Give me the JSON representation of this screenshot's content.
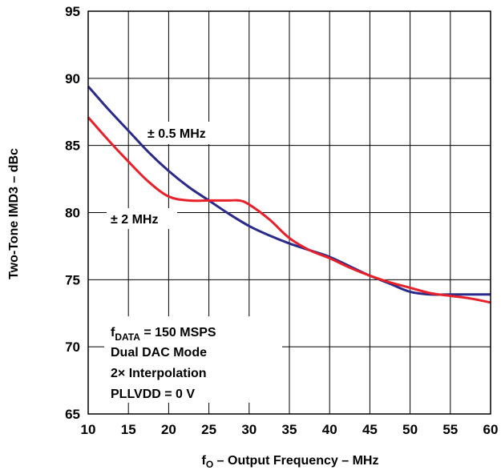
{
  "chart_data": {
    "type": "line",
    "title": "",
    "xlabel": {
      "main": "f",
      "sub": "O",
      "rest": " – Output Frequency – MHz"
    },
    "ylabel": "Two-Tone IMD3 – dBc",
    "xlim": [
      10,
      60
    ],
    "ylim": [
      65,
      95
    ],
    "xticks": [
      10,
      15,
      20,
      25,
      30,
      35,
      40,
      45,
      50,
      55,
      60
    ],
    "yticks": [
      65,
      70,
      75,
      80,
      85,
      90,
      95
    ],
    "grid": true,
    "legend": "none",
    "series": [
      {
        "name": "± 0.5 MHz",
        "color": "#2a2a8a",
        "x": [
          10,
          12.5,
          15,
          17.5,
          20,
          22.5,
          25,
          27.5,
          30,
          32.5,
          35,
          37.5,
          40,
          42.5,
          45,
          47.5,
          50,
          52.5,
          55,
          57.5,
          60
        ],
        "y": [
          89.4,
          87.7,
          86.1,
          84.5,
          83.1,
          81.9,
          80.9,
          79.9,
          79.0,
          78.3,
          77.7,
          77.2,
          76.7,
          76.0,
          75.3,
          74.7,
          74.1,
          73.9,
          73.9,
          73.9,
          73.9
        ]
      },
      {
        "name": "± 2 MHz",
        "color": "#e8202a",
        "x": [
          10,
          12.5,
          15,
          17.5,
          20,
          22.5,
          25,
          27.5,
          28.8,
          30,
          32.5,
          35,
          37.5,
          40,
          42.5,
          45,
          47.5,
          50,
          52.5,
          55,
          57.5,
          60
        ],
        "y": [
          87.1,
          85.4,
          83.8,
          82.3,
          81.2,
          80.9,
          80.9,
          80.9,
          80.9,
          80.6,
          79.5,
          78.1,
          77.2,
          76.6,
          75.9,
          75.3,
          74.8,
          74.4,
          74.0,
          73.8,
          73.6,
          73.3
        ]
      }
    ],
    "annotations": {
      "series_label_1": "± 0.5 MHz",
      "series_label_2": "± 2 MHz",
      "conditions": [
        {
          "main": "f",
          "sub": "DATA",
          "rest": " = 150 MSPS"
        },
        {
          "main": "Dual DAC Mode",
          "sub": "",
          "rest": ""
        },
        {
          "main": "2× Interpolation",
          "sub": "",
          "rest": ""
        },
        {
          "main": "PLLVDD = 0 V",
          "sub": "",
          "rest": ""
        }
      ]
    }
  }
}
